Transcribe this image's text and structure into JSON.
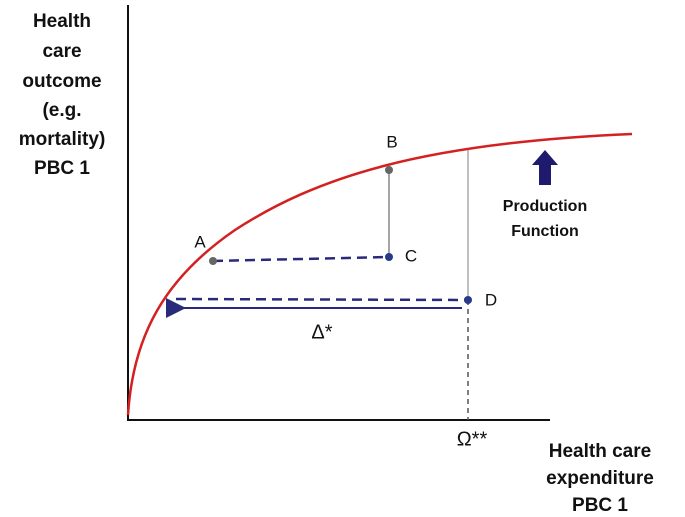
{
  "y_axis_label": [
    "Health",
    "care",
    "outcome",
    "(e.g.",
    "mortality)",
    "PBC 1"
  ],
  "x_axis_label": [
    "Health care",
    "expenditure",
    "PBC 1"
  ],
  "points": {
    "A": "A",
    "B": "B",
    "C": "C",
    "D": "D"
  },
  "curve_label": [
    "Production",
    "Function"
  ],
  "annotations": {
    "delta": "Δ*",
    "omega": "Ω**"
  }
}
